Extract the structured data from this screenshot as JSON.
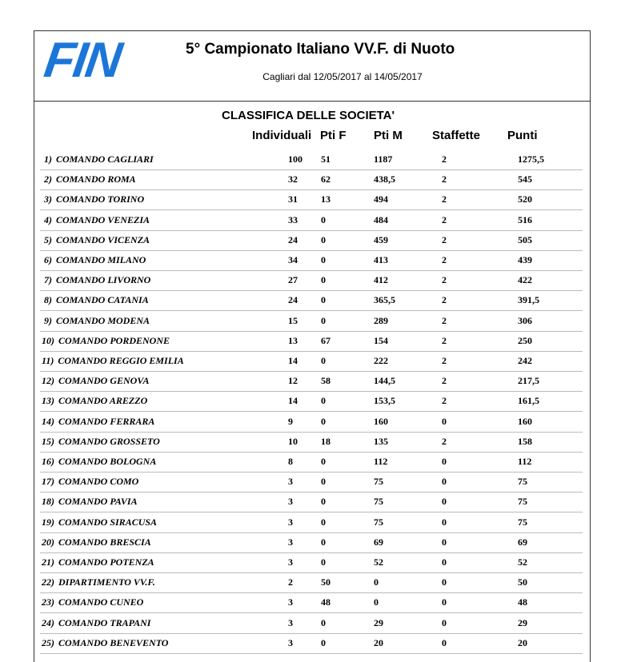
{
  "header": {
    "logo": "FIN",
    "title": "5° Campionato Italiano VV.F. di Nuoto",
    "subtitle": "Cagliari dal 12/05/2017 al 14/05/2017"
  },
  "table": {
    "title": "CLASSIFICA DELLE SOCIETA'",
    "columns": [
      "Individuali",
      "Pti F",
      "Pti M",
      "Staffette",
      "Punti"
    ],
    "rows": [
      [
        "1)",
        "COMANDO CAGLIARI",
        "100",
        "51",
        "1187",
        "2",
        "1275,5"
      ],
      [
        "2)",
        "COMANDO ROMA",
        "32",
        "62",
        "438,5",
        "2",
        "545"
      ],
      [
        "3)",
        "COMANDO TORINO",
        "31",
        "13",
        "494",
        "2",
        "520"
      ],
      [
        "4)",
        "COMANDO VENEZIA",
        "33",
        "0",
        "484",
        "2",
        "516"
      ],
      [
        "5)",
        "COMANDO VICENZA",
        "24",
        "0",
        "459",
        "2",
        "505"
      ],
      [
        "6)",
        "COMANDO MILANO",
        "34",
        "0",
        "413",
        "2",
        "439"
      ],
      [
        "7)",
        "COMANDO LIVORNO",
        "27",
        "0",
        "412",
        "2",
        "422"
      ],
      [
        "8)",
        "COMANDO CATANIA",
        "24",
        "0",
        "365,5",
        "2",
        "391,5"
      ],
      [
        "9)",
        "COMANDO MODENA",
        "15",
        "0",
        "289",
        "2",
        "306"
      ],
      [
        "10)",
        "COMANDO PORDENONE",
        "13",
        "67",
        "154",
        "2",
        "250"
      ],
      [
        "11)",
        "COMANDO REGGIO EMILIA",
        "14",
        "0",
        "222",
        "2",
        "242"
      ],
      [
        "12)",
        "COMANDO GENOVA",
        "12",
        "58",
        "144,5",
        "2",
        "217,5"
      ],
      [
        "13)",
        "COMANDO AREZZO",
        "14",
        "0",
        "153,5",
        "2",
        "161,5"
      ],
      [
        "14)",
        "COMANDO FERRARA",
        "9",
        "0",
        "160",
        "0",
        "160"
      ],
      [
        "15)",
        "COMANDO GROSSETO",
        "10",
        "18",
        "135",
        "2",
        "158"
      ],
      [
        "16)",
        "COMANDO BOLOGNA",
        "8",
        "0",
        "112",
        "0",
        "112"
      ],
      [
        "17)",
        "COMANDO COMO",
        "3",
        "0",
        "75",
        "0",
        "75"
      ],
      [
        "18)",
        "COMANDO PAVIA",
        "3",
        "0",
        "75",
        "0",
        "75"
      ],
      [
        "19)",
        "COMANDO SIRACUSA",
        "3",
        "0",
        "75",
        "0",
        "75"
      ],
      [
        "20)",
        "COMANDO BRESCIA",
        "3",
        "0",
        "69",
        "0",
        "69"
      ],
      [
        "21)",
        "COMANDO POTENZA",
        "3",
        "0",
        "52",
        "0",
        "52"
      ],
      [
        "22)",
        "DIPARTIMENTO VV.F.",
        "2",
        "50",
        "0",
        "0",
        "50"
      ],
      [
        "23)",
        "COMANDO CUNEO",
        "3",
        "48",
        "0",
        "0",
        "48"
      ],
      [
        "24)",
        "COMANDO TRAPANI",
        "3",
        "0",
        "29",
        "0",
        "29"
      ],
      [
        "25)",
        "COMANDO BENEVENTO",
        "3",
        "0",
        "20",
        "0",
        "20"
      ]
    ]
  }
}
